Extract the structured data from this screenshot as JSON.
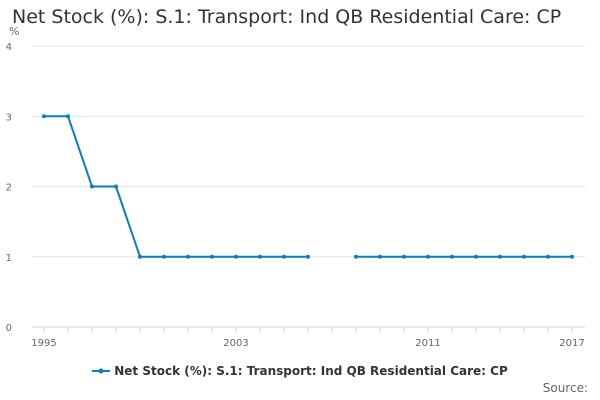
{
  "title": "Net Stock (%): S.1: Transport: Ind QB Residential Care: CP",
  "y_unit": "%",
  "source_label": "Source:",
  "colors": {
    "series": "#0a7fbd",
    "grid": "#e6e6e6",
    "axis": "#ccd6eb",
    "text": "#333333",
    "muted": "#666666"
  },
  "chart_data": {
    "type": "line",
    "title": "Net Stock (%): S.1: Transport: Ind QB Residential Care: CP",
    "ylabel": "%",
    "xlabel": "",
    "ylim": [
      0,
      4
    ],
    "yticks": [
      0,
      1,
      2,
      3,
      4
    ],
    "xlim": [
      1995,
      2017
    ],
    "xticks": [
      1995,
      2003,
      2011,
      2017
    ],
    "grid": true,
    "legend_position": "bottom",
    "series": [
      {
        "name": "Net Stock (%): S.1: Transport: Ind QB Residential Care: CP",
        "x": [
          1995,
          1996,
          1997,
          1998,
          1999,
          2000,
          2001,
          2002,
          2003,
          2004,
          2005,
          2006,
          2007,
          2008,
          2009,
          2010,
          2011,
          2012,
          2013,
          2014,
          2015,
          2016,
          2017
        ],
        "values": [
          3,
          3,
          2,
          2,
          1,
          1,
          1,
          1,
          1,
          1,
          1,
          1,
          null,
          1,
          1,
          1,
          1,
          1,
          1,
          1,
          1,
          1,
          1
        ]
      }
    ]
  }
}
